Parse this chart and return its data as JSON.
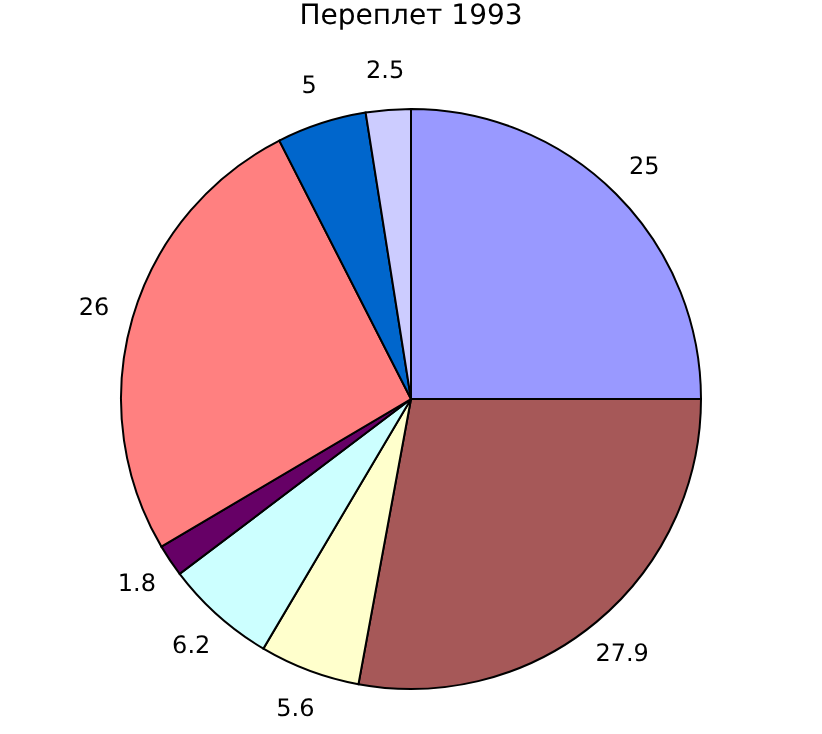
{
  "chart_data": {
    "type": "pie",
    "title": "Переплет 1993",
    "categories": [
      null,
      null,
      null,
      null,
      null,
      null,
      null,
      null
    ],
    "values": [
      25,
      27.9,
      5.6,
      6.2,
      1.8,
      26,
      5,
      2.5
    ],
    "colors": [
      "#9999ff",
      "#a65858",
      "#ffffcc",
      "#ccffff",
      "#660066",
      "#ff8080",
      "#0066cc",
      "#ccccff"
    ],
    "data_labels": true,
    "legend": false
  }
}
